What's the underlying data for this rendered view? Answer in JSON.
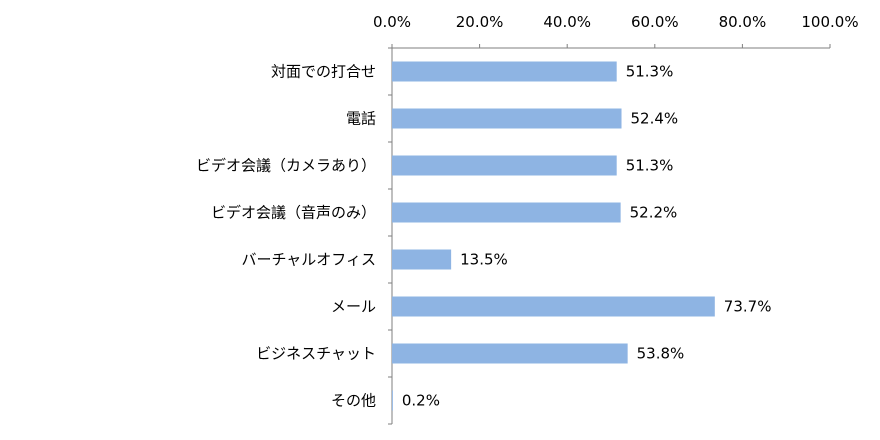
{
  "chart_data": {
    "type": "bar",
    "orientation": "horizontal",
    "categories": [
      "対面での打合せ",
      "電話",
      "ビデオ会議（カメラあり）",
      "ビデオ会議（音声のみ）",
      "バーチャルオフィス",
      "メール",
      "ビジネスチャット",
      "その他"
    ],
    "values": [
      51.3,
      52.4,
      51.3,
      52.2,
      13.5,
      73.7,
      53.8,
      0.2
    ],
    "data_labels": [
      "51.3%",
      "52.4%",
      "51.3%",
      "52.2%",
      "13.5%",
      "73.7%",
      "53.8%",
      "0.2%"
    ],
    "xlim": [
      0,
      100
    ],
    "x_ticks": [
      "0.0%",
      "20.0%",
      "40.0%",
      "60.0%",
      "80.0%",
      "100.0%"
    ],
    "x_axis_position": "top",
    "grid": false,
    "legend": "none",
    "bar_color": "#8EB4E3",
    "title": "",
    "xlabel": "",
    "ylabel": ""
  }
}
